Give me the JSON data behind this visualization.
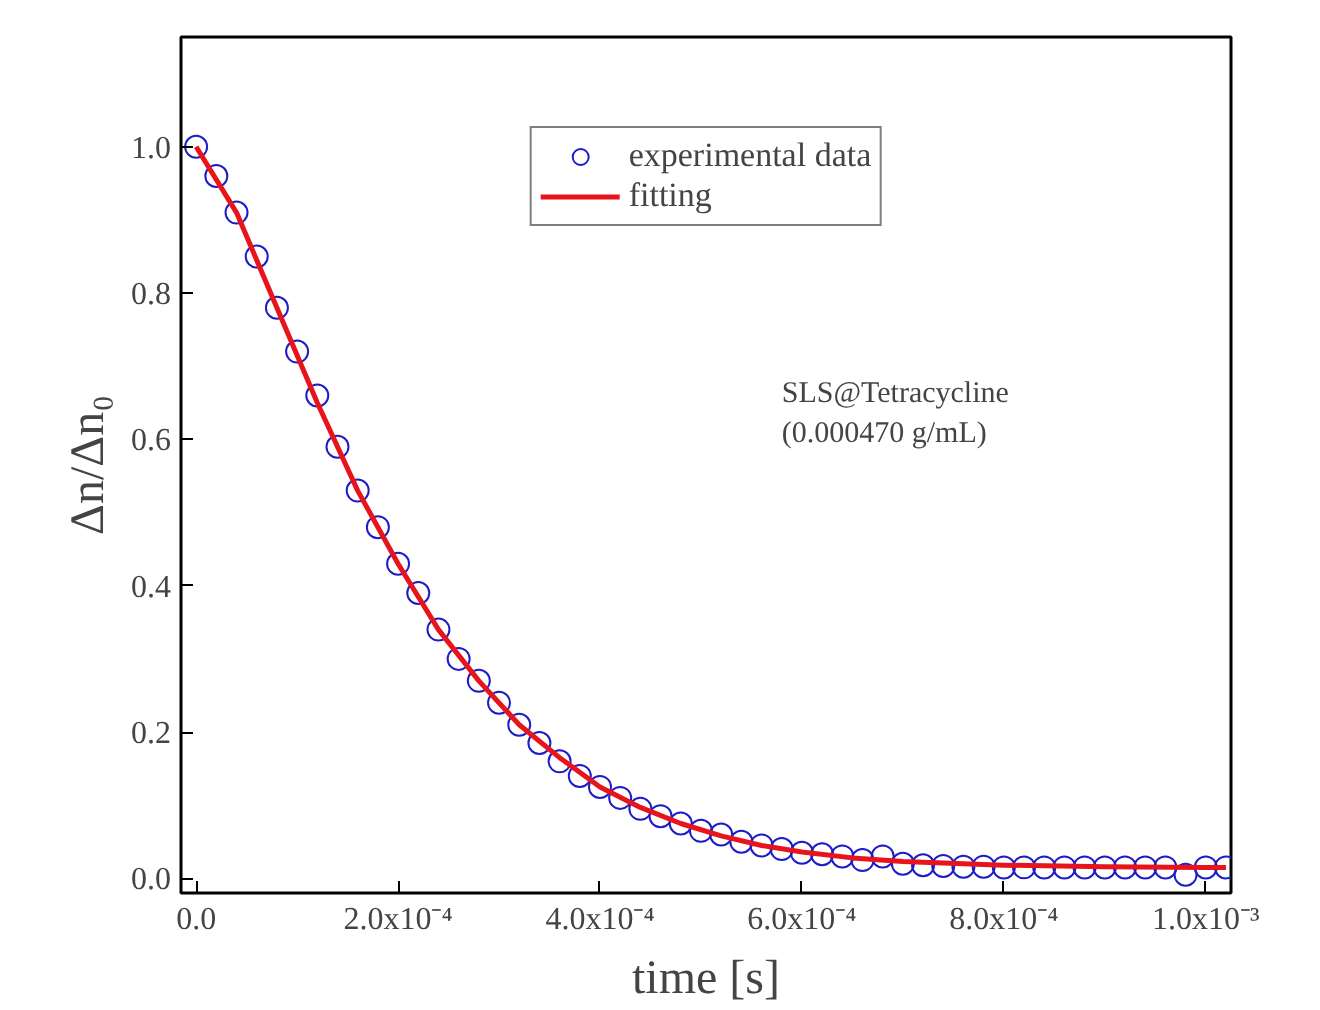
{
  "chart_data": {
    "type": "scatter",
    "xlabel": "time [s]",
    "ylabel": "Δn/Δn₀",
    "xlim": [
      -1.5e-05,
      0.001025
    ],
    "ylim": [
      -0.02,
      1.15
    ],
    "xticks": [
      {
        "value": 0,
        "label": "0.0"
      },
      {
        "value": 0.0002,
        "label": "2.0x10⁻⁴"
      },
      {
        "value": 0.0004,
        "label": "4.0x10⁻⁴"
      },
      {
        "value": 0.0006,
        "label": "6.0x10⁻⁴"
      },
      {
        "value": 0.0008,
        "label": "8.0x10⁻⁴"
      },
      {
        "value": 0.001,
        "label": "1.0x10⁻³"
      }
    ],
    "yticks": [
      {
        "value": 0,
        "label": "0.0"
      },
      {
        "value": 0.2,
        "label": "0.2"
      },
      {
        "value": 0.4,
        "label": "0.4"
      },
      {
        "value": 0.6,
        "label": "0.6"
      },
      {
        "value": 0.8,
        "label": "0.8"
      },
      {
        "value": 1.0,
        "label": "1.0"
      }
    ],
    "grid": false,
    "legend": "top",
    "annotations": [
      "SLS@Tetracycline",
      "(0.000470 g/mL)"
    ],
    "series": [
      {
        "name": "experimental data",
        "marker": "circle",
        "color": "#1c1cc8",
        "x": [
          0,
          2e-05,
          4e-05,
          6e-05,
          8e-05,
          0.0001,
          0.00012,
          0.00014,
          0.00016,
          0.00018,
          0.0002,
          0.00022,
          0.00024,
          0.00026,
          0.00028,
          0.0003,
          0.00032,
          0.00034,
          0.00036,
          0.00038,
          0.0004,
          0.00042,
          0.00044,
          0.00046,
          0.00048,
          0.0005,
          0.00052,
          0.00054,
          0.00056,
          0.00058,
          0.0006,
          0.00062,
          0.00064,
          0.00066,
          0.00068,
          0.0007,
          0.00072,
          0.00074,
          0.00076,
          0.00078,
          0.0008,
          0.00082,
          0.00084,
          0.00086,
          0.00088,
          0.0009,
          0.00092,
          0.00094,
          0.00096,
          0.00098,
          0.001,
          0.00102
        ],
        "values": [
          1.0,
          0.96,
          0.91,
          0.85,
          0.78,
          0.72,
          0.66,
          0.59,
          0.53,
          0.48,
          0.43,
          0.39,
          0.34,
          0.3,
          0.27,
          0.24,
          0.21,
          0.185,
          0.16,
          0.14,
          0.125,
          0.11,
          0.095,
          0.085,
          0.075,
          0.065,
          0.06,
          0.05,
          0.045,
          0.04,
          0.035,
          0.033,
          0.03,
          0.025,
          0.03,
          0.02,
          0.018,
          0.017,
          0.016,
          0.016,
          0.015,
          0.015,
          0.015,
          0.015,
          0.015,
          0.015,
          0.015,
          0.015,
          0.015,
          0.005,
          0.015,
          0.015
        ]
      },
      {
        "name": "fitting",
        "type": "line",
        "color": "#e8141c",
        "line_style": "solid",
        "x": [
          0,
          4e-05,
          8e-05,
          0.00012,
          0.00016,
          0.0002,
          0.00024,
          0.00028,
          0.00032,
          0.00036,
          0.0004,
          0.00044,
          0.00048,
          0.00052,
          0.00056,
          0.0006,
          0.00065,
          0.0007,
          0.0008,
          0.0009,
          0.001,
          0.00102
        ],
        "values": [
          1.0,
          0.91,
          0.78,
          0.65,
          0.53,
          0.43,
          0.34,
          0.27,
          0.21,
          0.165,
          0.125,
          0.097,
          0.075,
          0.058,
          0.045,
          0.036,
          0.028,
          0.023,
          0.018,
          0.016,
          0.015,
          0.015
        ]
      }
    ]
  }
}
